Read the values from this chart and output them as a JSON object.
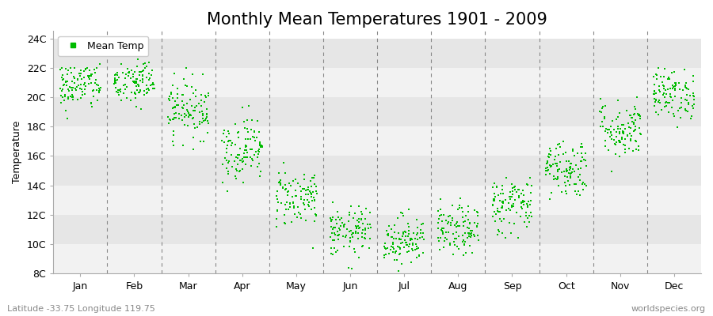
{
  "title": "Monthly Mean Temperatures 1901 - 2009",
  "ylabel": "Temperature",
  "subtitle": "Latitude -33.75 Longitude 119.75",
  "watermark": "worldspecies.org",
  "ylim": [
    8,
    24.5
  ],
  "yticks": [
    8,
    10,
    12,
    14,
    16,
    18,
    20,
    22,
    24
  ],
  "ytick_labels": [
    "8C",
    "10C",
    "12C",
    "14C",
    "16C",
    "18C",
    "20C",
    "22C",
    "24C"
  ],
  "months": [
    "Jan",
    "Feb",
    "Mar",
    "Apr",
    "May",
    "Jun",
    "Jul",
    "Aug",
    "Sep",
    "Oct",
    "Nov",
    "Dec"
  ],
  "month_means": [
    20.8,
    21.0,
    19.2,
    16.5,
    13.2,
    10.8,
    10.3,
    10.9,
    12.7,
    15.2,
    17.8,
    20.2
  ],
  "month_stds": [
    0.85,
    0.85,
    1.0,
    1.1,
    1.0,
    0.85,
    0.85,
    0.85,
    1.0,
    1.0,
    1.0,
    0.85
  ],
  "n_years": 109,
  "dot_color": "#00bb00",
  "dot_size": 3,
  "bg_light": "#f2f2f2",
  "bg_dark": "#e6e6e6",
  "plot_bg_color": "#ffffff",
  "grid_color": "#888888",
  "title_fontsize": 15,
  "label_fontsize": 9,
  "tick_fontsize": 9,
  "legend_label": "Mean Temp",
  "seed": 42
}
